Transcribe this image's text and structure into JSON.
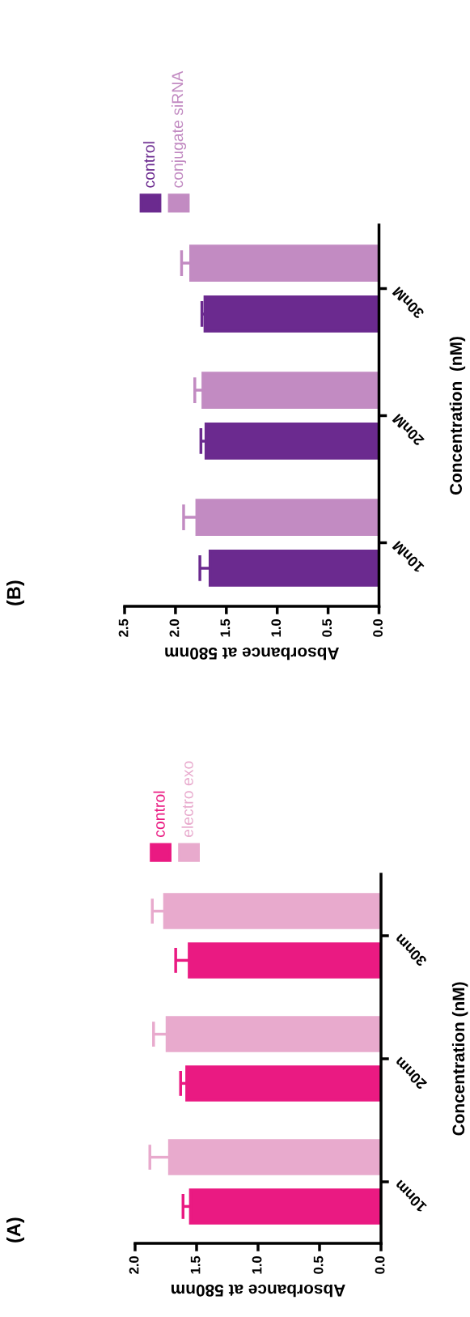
{
  "chart_data": [
    {
      "type": "bar",
      "orientation": "horizontal",
      "title": "(A)",
      "xlabel": "Absorbance at 580nm",
      "ylabel": "Concentration (nM)",
      "categories": [
        "30nm",
        "20nm",
        "10nm"
      ],
      "xlim": [
        2.0,
        0.0
      ],
      "xticks": [
        {
          "value": 2.0,
          "label": "2.0"
        },
        {
          "value": 1.5,
          "label": "1.5"
        },
        {
          "value": 1.0,
          "label": "1.0"
        },
        {
          "value": 0.5,
          "label": "0.5"
        },
        {
          "value": 0.0,
          "label": "0.0"
        }
      ],
      "legend": "top",
      "series": [
        {
          "name": "control",
          "color": "#ea1a82",
          "values": [
            1.56,
            1.58,
            1.55
          ],
          "errors": [
            [
              1.56,
              1.67
            ],
            [
              1.58,
              1.63
            ],
            [
              1.55,
              1.61
            ]
          ]
        },
        {
          "name": "electro exo",
          "color": "#e8aacd",
          "values": [
            1.76,
            1.74,
            1.72
          ],
          "errors": [
            [
              1.76,
              1.86
            ],
            [
              1.74,
              1.85
            ],
            [
              1.72,
              1.88
            ]
          ]
        }
      ]
    },
    {
      "type": "bar",
      "orientation": "horizontal",
      "title": "(B)",
      "xlabel": "Absorbance at 580nm",
      "ylabel": "Concentration  (nM)",
      "categories": [
        "30nM",
        "20nM",
        "10nM"
      ],
      "xlim": [
        2.5,
        0.0
      ],
      "xticks": [
        {
          "value": 2.5,
          "label": "2.5"
        },
        {
          "value": 2.0,
          "label": "2.0"
        },
        {
          "value": 1.5,
          "label": "1.5"
        },
        {
          "value": 1.0,
          "label": "1.0"
        },
        {
          "value": 0.5,
          "label": "0.5"
        },
        {
          "value": 0.0,
          "label": "0.0"
        }
      ],
      "legend": "top",
      "series": [
        {
          "name": "control",
          "color": "#6b2a8f",
          "values": [
            1.71,
            1.7,
            1.66
          ],
          "errors": [
            [
              1.71,
              1.74
            ],
            [
              1.7,
              1.75
            ],
            [
              1.66,
              1.76
            ]
          ]
        },
        {
          "name": "conjugate siRNA",
          "color": "#c28bc2",
          "values": [
            1.85,
            1.73,
            1.79
          ],
          "errors": [
            [
              1.85,
              1.94
            ],
            [
              1.73,
              1.81
            ],
            [
              1.79,
              1.92
            ]
          ]
        }
      ]
    }
  ]
}
